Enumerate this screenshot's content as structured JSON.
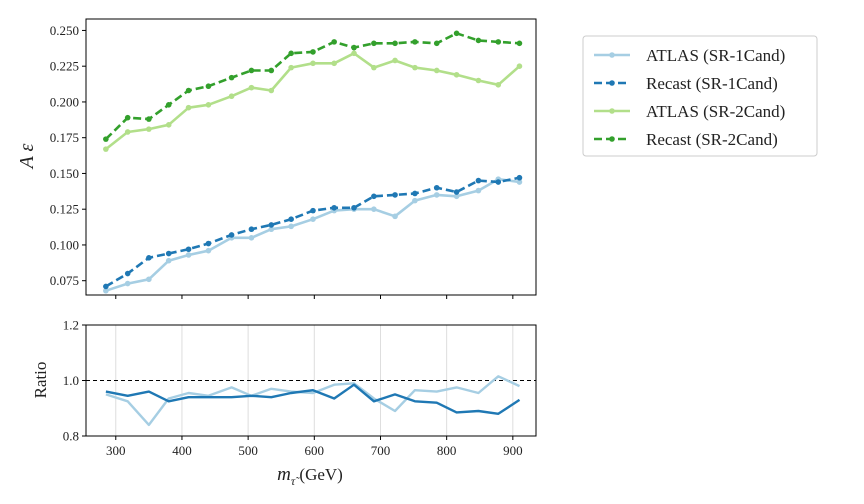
{
  "chart_data": [
    {
      "type": "line",
      "title": "",
      "xlabel": "",
      "ylabel": "A ε",
      "xlim": [
        255,
        935
      ],
      "ylim": [
        0.065,
        0.258
      ],
      "xticks": [
        300,
        400,
        500,
        600,
        700,
        800,
        900
      ],
      "yticks": [
        0.075,
        0.1,
        0.125,
        0.15,
        0.175,
        0.2,
        0.225,
        0.25
      ],
      "ytick_labels": [
        "0.075",
        "0.100",
        "0.125",
        "0.150",
        "0.175",
        "0.200",
        "0.225",
        "0.250"
      ],
      "grid": false,
      "x": [
        285,
        318,
        350,
        380,
        410,
        440,
        475,
        505,
        535,
        565,
        598,
        630,
        660,
        690,
        722,
        752,
        785,
        815,
        848,
        878,
        910
      ],
      "series": [
        {
          "name": "ATLAS (SR-1Cand)",
          "color": "#a6cee3",
          "style": "solid",
          "values": [
            0.068,
            0.073,
            0.076,
            0.089,
            0.093,
            0.096,
            0.105,
            0.105,
            0.111,
            0.113,
            0.118,
            0.124,
            0.125,
            0.125,
            0.12,
            0.131,
            0.135,
            0.134,
            0.138,
            0.146,
            0.144
          ]
        },
        {
          "name": "Recast (SR-1Cand)",
          "color": "#1f78b4",
          "style": "dashed",
          "values": [
            0.071,
            0.08,
            0.091,
            0.094,
            0.097,
            0.101,
            0.107,
            0.111,
            0.114,
            0.118,
            0.124,
            0.126,
            0.126,
            0.134,
            0.135,
            0.136,
            0.14,
            0.137,
            0.145,
            0.144,
            0.147
          ]
        },
        {
          "name": "ATLAS (SR-2Cand)",
          "color": "#b2df8a",
          "style": "solid",
          "values": [
            0.167,
            0.179,
            0.181,
            0.184,
            0.196,
            0.198,
            0.204,
            0.21,
            0.208,
            0.224,
            0.227,
            0.227,
            0.234,
            0.224,
            0.229,
            0.224,
            0.222,
            0.219,
            0.215,
            0.212,
            0.225
          ]
        },
        {
          "name": "Recast (SR-2Cand)",
          "color": "#33a02c",
          "style": "dashed",
          "values": [
            0.174,
            0.189,
            0.188,
            0.198,
            0.208,
            0.211,
            0.217,
            0.222,
            0.222,
            0.234,
            0.235,
            0.242,
            0.238,
            0.241,
            0.241,
            0.242,
            0.241,
            0.248,
            0.243,
            0.242,
            0.241
          ]
        }
      ]
    },
    {
      "type": "line",
      "title": "",
      "xlabel": "m_τ̃ (GeV)",
      "ylabel": "Ratio",
      "xlim": [
        255,
        935
      ],
      "ylim": [
        0.8,
        1.2
      ],
      "xticks": [
        300,
        400,
        500,
        600,
        700,
        800,
        900
      ],
      "yticks": [
        0.8,
        1.0,
        1.2
      ],
      "ytick_labels": [
        "0.8",
        "1.0",
        "1.2"
      ],
      "grid": "x",
      "reference_line": 1.0,
      "x": [
        285,
        318,
        350,
        380,
        410,
        440,
        475,
        505,
        535,
        565,
        598,
        630,
        660,
        690,
        722,
        752,
        785,
        815,
        848,
        878,
        910
      ],
      "series": [
        {
          "color": "#a6cee3",
          "values": [
            0.95,
            0.925,
            0.84,
            0.935,
            0.955,
            0.945,
            0.975,
            0.945,
            0.97,
            0.96,
            0.955,
            0.985,
            0.99,
            0.935,
            0.89,
            0.965,
            0.96,
            0.975,
            0.955,
            1.015,
            0.98
          ]
        },
        {
          "color": "#1f78b4",
          "values": [
            0.96,
            0.945,
            0.96,
            0.925,
            0.94,
            0.94,
            0.94,
            0.945,
            0.94,
            0.955,
            0.965,
            0.935,
            0.985,
            0.925,
            0.95,
            0.925,
            0.92,
            0.885,
            0.89,
            0.88,
            0.93
          ]
        }
      ]
    }
  ],
  "legend": {
    "placement": "right",
    "entries": [
      {
        "label": "ATLAS (SR-1Cand)",
        "color": "#a6cee3",
        "style": "solid"
      },
      {
        "label": "Recast (SR-1Cand)",
        "color": "#1f78b4",
        "style": "dashed"
      },
      {
        "label": "ATLAS (SR-2Cand)",
        "color": "#b2df8a",
        "style": "solid"
      },
      {
        "label": "Recast (SR-2Cand)",
        "color": "#33a02c",
        "style": "dashed"
      }
    ]
  }
}
